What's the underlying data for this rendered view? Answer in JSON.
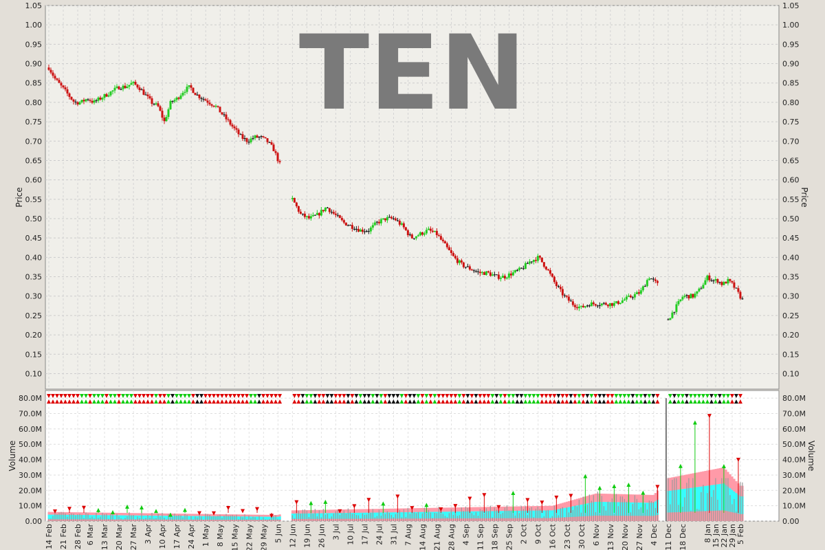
{
  "chart_data": [
    {
      "type": "candlestick",
      "title": "TEN",
      "ylabel": "Price",
      "ylim": [
        0.06,
        1.05
      ],
      "ytick_labels": [
        "0.10",
        "0.15",
        "0.20",
        "0.25",
        "0.30",
        "0.35",
        "0.40",
        "0.45",
        "0.50",
        "0.55",
        "0.60",
        "0.65",
        "0.70",
        "0.75",
        "0.80",
        "0.85",
        "0.90",
        "0.95",
        "1.00",
        "1.05"
      ],
      "grid": true,
      "colors": {
        "up": "#22cc22",
        "down": "#cc1111",
        "neutral": "#111111",
        "watermark": "#7a7a7a"
      },
      "segments": [
        {
          "from": "14 Feb",
          "to": "5 Jun",
          "close_start": 0.89,
          "close_end": 0.64,
          "path": [
            0.89,
            0.86,
            0.84,
            0.82,
            0.8,
            0.8,
            0.81,
            0.8,
            0.81,
            0.82,
            0.83,
            0.84,
            0.84,
            0.85,
            0.84,
            0.82,
            0.8,
            0.79,
            0.75,
            0.8,
            0.81,
            0.83,
            0.84,
            0.82,
            0.81,
            0.8,
            0.79,
            0.77,
            0.75,
            0.73,
            0.71,
            0.7,
            0.71,
            0.71,
            0.7,
            0.68,
            0.64
          ]
        },
        {
          "from": "12 Jun",
          "to": "4 Dec",
          "close_start": 0.55,
          "close_end": 0.33,
          "path": [
            0.55,
            0.51,
            0.5,
            0.51,
            0.53,
            0.51,
            0.49,
            0.48,
            0.47,
            0.47,
            0.49,
            0.5,
            0.5,
            0.48,
            0.45,
            0.46,
            0.47,
            0.46,
            0.43,
            0.4,
            0.38,
            0.37,
            0.36,
            0.36,
            0.35,
            0.35,
            0.36,
            0.37,
            0.39,
            0.4,
            0.37,
            0.33,
            0.3,
            0.28,
            0.27,
            0.28,
            0.28,
            0.28,
            0.28,
            0.29,
            0.3,
            0.31,
            0.35,
            0.33
          ]
        },
        {
          "from": "11 Dec",
          "to": "5 Feb",
          "close_start": 0.24,
          "close_end": 0.29,
          "path": [
            0.24,
            0.26,
            0.28,
            0.3,
            0.3,
            0.3,
            0.31,
            0.33,
            0.35,
            0.34,
            0.34,
            0.33,
            0.34,
            0.33,
            0.31,
            0.29
          ]
        }
      ]
    },
    {
      "type": "bar",
      "ylabel": "Volume",
      "ylim": [
        0,
        85000000
      ],
      "ytick_labels": [
        "0.00",
        "10.0M",
        "20.0M",
        "30.0M",
        "40.0M",
        "50.0M",
        "60.0M",
        "70.0M",
        "80.0M"
      ],
      "grid": true,
      "colors": {
        "bars": "#999999",
        "band_outer": "#ff9aa8",
        "band_inner": "#33ffff",
        "marker_up": "#11cc11",
        "marker_down": "#dd0000"
      },
      "typical_volume_range": [
        1000000,
        10000000
      ],
      "spike": {
        "date": "11 Dec",
        "value": 80000000
      },
      "band_level": [
        {
          "date": "14 Feb",
          "value": 6000000
        },
        {
          "date": "5 Jun",
          "value": 4000000
        },
        {
          "date": "12 Jun",
          "value": 7000000
        },
        {
          "date": "16 Oct",
          "value": 10000000
        },
        {
          "date": "6 Nov",
          "value": 18000000
        },
        {
          "date": "4 Dec",
          "value": 17000000
        },
        {
          "date": "11 Dec",
          "value": 28000000
        },
        {
          "date": "22 Jan",
          "value": 35000000
        },
        {
          "date": "5 Feb",
          "value": 23000000
        }
      ]
    }
  ],
  "x_tick_labels": [
    "14 Feb",
    "21 Feb",
    "28 Feb",
    "6 Mar",
    "13 Mar",
    "20 Mar",
    "27 Mar",
    "3 Apr",
    "10 Apr",
    "17 Apr",
    "24 Apr",
    "1 May",
    "8 May",
    "15 May",
    "22 May",
    "29 May",
    "5 Jun",
    "12 Jun",
    "19 Jun",
    "26 Jun",
    "3 Jul",
    "10 Jul",
    "17 Jul",
    "24 Jul",
    "31 Jul",
    "7 Aug",
    "14 Aug",
    "21 Aug",
    "28 Aug",
    "4 Sep",
    "11 Sep",
    "18 Sep",
    "25 Sep",
    "2 Oct",
    "9 Oct",
    "16 Oct",
    "23 Oct",
    "30 Oct",
    "6 Nov",
    "13 Nov",
    "20 Nov",
    "27 Nov",
    "4 Dec",
    "11 Dec",
    "18 Dec",
    "8 Jan",
    "15 Jan",
    "22 Jan",
    "29 Jan",
    "5 Feb"
  ]
}
